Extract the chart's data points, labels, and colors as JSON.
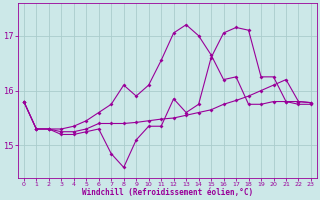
{
  "x_all": [
    0,
    1,
    2,
    3,
    4,
    5,
    6,
    7,
    8,
    9,
    10,
    11,
    12,
    13,
    14,
    15,
    16,
    17,
    18,
    19,
    20,
    21,
    22,
    23
  ],
  "y_spike": [
    15.8,
    15.3,
    15.3,
    15.2,
    15.2,
    15.25,
    15.3,
    14.85,
    14.6,
    15.1,
    15.35,
    15.35,
    15.85,
    15.6,
    15.75,
    16.6,
    17.05,
    17.15,
    17.1,
    16.25,
    16.25,
    15.8,
    15.75,
    15.75
  ],
  "y_smooth": [
    15.8,
    15.3,
    15.3,
    15.25,
    15.25,
    15.3,
    15.4,
    15.4,
    15.4,
    15.42,
    15.45,
    15.48,
    15.5,
    15.55,
    15.6,
    15.65,
    15.75,
    15.82,
    15.9,
    16.0,
    16.1,
    16.2,
    15.8,
    15.78
  ],
  "x_mid": [
    0,
    1,
    2,
    3,
    4,
    5,
    6,
    7,
    8,
    9,
    10,
    11,
    12,
    13,
    14,
    15,
    16,
    17,
    18,
    19,
    20,
    21,
    22,
    23
  ],
  "y_mid": [
    15.8,
    15.3,
    15.3,
    15.3,
    15.35,
    15.45,
    15.6,
    15.75,
    16.1,
    15.9,
    16.1,
    16.55,
    17.05,
    17.2,
    17.0,
    16.65,
    16.2,
    16.25,
    15.75,
    15.75,
    15.8,
    15.8,
    15.8,
    15.78
  ],
  "color": "#990099",
  "bg_color": "#cce8e8",
  "grid_color": "#aacccc",
  "xlabel": "Windchill (Refroidissement éolien,°C)",
  "ylabel_ticks": [
    15,
    16,
    17
  ],
  "xlim": [
    -0.5,
    23.5
  ],
  "ylim": [
    14.4,
    17.6
  ],
  "xticks": [
    0,
    1,
    2,
    3,
    4,
    5,
    6,
    7,
    8,
    9,
    10,
    11,
    12,
    13,
    14,
    15,
    16,
    17,
    18,
    19,
    20,
    21,
    22,
    23
  ]
}
